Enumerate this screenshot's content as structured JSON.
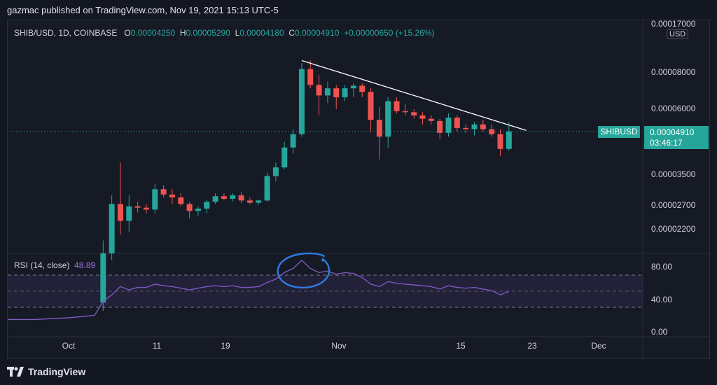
{
  "caption": "gazmac published on TradingView.com, Nov 19, 2021 15:13 UTC-5",
  "brand": "TradingView",
  "legend": {
    "symbol": "SHIB/USD, 1D, COINBASE",
    "open_label": "O",
    "open": "0.00004250",
    "high_label": "H",
    "high": "0.00005290",
    "low_label": "L",
    "low": "0.00004180",
    "close_label": "C",
    "close": "0.00004910",
    "change": "+0.00000650 (+15.26%)"
  },
  "rsi_legend": {
    "label": "RSI (14, close)",
    "value": "48.89"
  },
  "currency": "USD",
  "symbol_tag": "SHIBUSD",
  "price_tag": {
    "price": "0.00004910",
    "countdown": "03:46:17"
  },
  "price_ticks": [
    "0.00017000",
    "0.00008000",
    "0.00006000",
    "0.00004910",
    "0.00003500",
    "0.00002700",
    "0.00002200"
  ],
  "rsi_ticks": [
    "80.00",
    "40.00",
    "0.00"
  ],
  "date_ticks": [
    "Oct",
    "11",
    "19",
    "Nov",
    "15",
    "23",
    "Dec"
  ],
  "colors": {
    "up": "#26a69a",
    "down": "#ef5350",
    "rsi": "#7e57c2",
    "circle": "#2e7be0",
    "trend": "#ffffff"
  },
  "chart_data": [
    {
      "type": "candlestick",
      "title": "SHIB/USD, 1D, COINBASE",
      "x_unit": "date (2021)",
      "y_scale": "log",
      "candles": [
        {
          "date": "2021-10-05",
          "o": 1.2e-05,
          "h": 2e-05,
          "l": 1.12e-05,
          "c": 1.8e-05
        },
        {
          "date": "2021-10-06",
          "o": 1.8e-05,
          "h": 2.9e-05,
          "l": 1.7e-05,
          "c": 2.7e-05
        },
        {
          "date": "2021-10-07",
          "o": 2.7e-05,
          "h": 3.8e-05,
          "l": 2.1e-05,
          "c": 2.35e-05
        },
        {
          "date": "2021-10-08",
          "o": 2.35e-05,
          "h": 2.9e-05,
          "l": 2.15e-05,
          "c": 2.65e-05
        },
        {
          "date": "2021-10-09",
          "o": 2.65e-05,
          "h": 2.75e-05,
          "l": 2.52e-05,
          "c": 2.62e-05
        },
        {
          "date": "2021-10-10",
          "o": 2.62e-05,
          "h": 2.7e-05,
          "l": 2.5e-05,
          "c": 2.58e-05
        },
        {
          "date": "2021-10-11",
          "o": 2.58e-05,
          "h": 3.18e-05,
          "l": 2.5e-05,
          "c": 3.05e-05
        },
        {
          "date": "2021-10-12",
          "o": 3.05e-05,
          "h": 3.15e-05,
          "l": 2.85e-05,
          "c": 2.92e-05
        },
        {
          "date": "2021-10-13",
          "o": 2.92e-05,
          "h": 3.05e-05,
          "l": 2.7e-05,
          "c": 2.85e-05
        },
        {
          "date": "2021-10-14",
          "o": 2.85e-05,
          "h": 2.95e-05,
          "l": 2.65e-05,
          "c": 2.7e-05
        },
        {
          "date": "2021-10-15",
          "o": 2.7e-05,
          "h": 2.75e-05,
          "l": 2.4e-05,
          "c": 2.55e-05
        },
        {
          "date": "2021-10-16",
          "o": 2.55e-05,
          "h": 2.65e-05,
          "l": 2.45e-05,
          "c": 2.6e-05
        },
        {
          "date": "2021-10-17",
          "o": 2.6e-05,
          "h": 2.8e-05,
          "l": 2.5e-05,
          "c": 2.75e-05
        },
        {
          "date": "2021-10-18",
          "o": 2.75e-05,
          "h": 2.95e-05,
          "l": 2.7e-05,
          "c": 2.88e-05
        },
        {
          "date": "2021-10-19",
          "o": 2.88e-05,
          "h": 2.95e-05,
          "l": 2.78e-05,
          "c": 2.82e-05
        },
        {
          "date": "2021-10-20",
          "o": 2.82e-05,
          "h": 2.95e-05,
          "l": 2.76e-05,
          "c": 2.9e-05
        },
        {
          "date": "2021-10-21",
          "o": 2.9e-05,
          "h": 2.98e-05,
          "l": 2.72e-05,
          "c": 2.78e-05
        },
        {
          "date": "2021-10-22",
          "o": 2.78e-05,
          "h": 2.85e-05,
          "l": 2.7e-05,
          "c": 2.73e-05
        },
        {
          "date": "2021-10-23",
          "o": 2.73e-05,
          "h": 2.8e-05,
          "l": 2.68e-05,
          "c": 2.78e-05
        },
        {
          "date": "2021-10-24",
          "o": 2.78e-05,
          "h": 3.5e-05,
          "l": 2.75e-05,
          "c": 3.4e-05
        },
        {
          "date": "2021-10-25",
          "o": 3.4e-05,
          "h": 3.8e-05,
          "l": 3.25e-05,
          "c": 3.65e-05
        },
        {
          "date": "2021-10-26",
          "o": 3.65e-05,
          "h": 4.5e-05,
          "l": 3.6e-05,
          "c": 4.3e-05
        },
        {
          "date": "2021-10-27",
          "o": 4.3e-05,
          "h": 5e-05,
          "l": 4.1e-05,
          "c": 4.8e-05
        },
        {
          "date": "2021-10-28",
          "o": 4.8e-05,
          "h": 8.6e-05,
          "l": 4.7e-05,
          "c": 8.2e-05
        },
        {
          "date": "2021-10-29",
          "o": 8.2e-05,
          "h": 8.8e-05,
          "l": 7e-05,
          "c": 7.2e-05
        },
        {
          "date": "2021-10-30",
          "o": 7.2e-05,
          "h": 7.8e-05,
          "l": 5.6e-05,
          "c": 6.6e-05
        },
        {
          "date": "2021-10-31",
          "o": 6.6e-05,
          "h": 7.4e-05,
          "l": 6.2e-05,
          "c": 7e-05
        },
        {
          "date": "2021-11-01",
          "o": 7e-05,
          "h": 7.2e-05,
          "l": 5.9e-05,
          "c": 6.5e-05
        },
        {
          "date": "2021-11-02",
          "o": 6.5e-05,
          "h": 7.2e-05,
          "l": 6.3e-05,
          "c": 7e-05
        },
        {
          "date": "2021-11-03",
          "o": 7e-05,
          "h": 7.3e-05,
          "l": 6.5e-05,
          "c": 7.15e-05
        },
        {
          "date": "2021-11-04",
          "o": 7.15e-05,
          "h": 7.3e-05,
          "l": 6.5e-05,
          "c": 6.8e-05
        },
        {
          "date": "2021-11-05",
          "o": 6.8e-05,
          "h": 7e-05,
          "l": 4.9e-05,
          "c": 5.4e-05
        },
        {
          "date": "2021-11-06",
          "o": 5.4e-05,
          "h": 6e-05,
          "l": 3.9e-05,
          "c": 4.7e-05
        },
        {
          "date": "2021-11-07",
          "o": 4.7e-05,
          "h": 6.5e-05,
          "l": 4.3e-05,
          "c": 6.3e-05
        },
        {
          "date": "2021-11-08",
          "o": 6.3e-05,
          "h": 6.5e-05,
          "l": 5.7e-05,
          "c": 5.8e-05
        },
        {
          "date": "2021-11-09",
          "o": 5.8e-05,
          "h": 6.15e-05,
          "l": 5.6e-05,
          "c": 5.75e-05
        },
        {
          "date": "2021-11-10",
          "o": 5.75e-05,
          "h": 5.9e-05,
          "l": 5.45e-05,
          "c": 5.6e-05
        },
        {
          "date": "2021-11-11",
          "o": 5.6e-05,
          "h": 5.75e-05,
          "l": 5.2e-05,
          "c": 5.45e-05
        },
        {
          "date": "2021-11-12",
          "o": 5.45e-05,
          "h": 5.6e-05,
          "l": 5.2e-05,
          "c": 5.35e-05
        },
        {
          "date": "2021-11-13",
          "o": 5.35e-05,
          "h": 5.45e-05,
          "l": 4.6e-05,
          "c": 4.85e-05
        },
        {
          "date": "2021-11-14",
          "o": 4.85e-05,
          "h": 5.7e-05,
          "l": 4.7e-05,
          "c": 5.5e-05
        },
        {
          "date": "2021-11-15",
          "o": 5.5e-05,
          "h": 5.6e-05,
          "l": 4.9e-05,
          "c": 5.05e-05
        },
        {
          "date": "2021-11-16",
          "o": 5.05e-05,
          "h": 5.2e-05,
          "l": 4.85e-05,
          "c": 5e-05
        },
        {
          "date": "2021-11-17",
          "o": 5e-05,
          "h": 5.3e-05,
          "l": 4.75e-05,
          "c": 5.2e-05
        },
        {
          "date": "2021-11-18",
          "o": 5.2e-05,
          "h": 5.4e-05,
          "l": 4.9e-05,
          "c": 5e-05
        },
        {
          "date": "2021-11-19",
          "o": 5e-05,
          "h": 5.2e-05,
          "l": 4.7e-05,
          "c": 4.8e-05
        },
        {
          "date": "2021-11-20",
          "o": 4.8e-05,
          "h": 5e-05,
          "l": 4e-05,
          "c": 4.25e-05
        },
        {
          "date": "2021-11-21",
          "o": 4.25e-05,
          "h": 5.29e-05,
          "l": 4.18e-05,
          "c": 4.91e-05
        }
      ],
      "trendline": [
        {
          "date": "2021-10-28",
          "price": 8.8e-05
        },
        {
          "date": "2021-11-23",
          "price": 4.95e-05
        }
      ]
    },
    {
      "type": "line",
      "title": "RSI (14, close)",
      "ylim": [
        0,
        100
      ],
      "bands": [
        30,
        50,
        70
      ],
      "values": [
        {
          "date": "2021-09-20",
          "v": 15
        },
        {
          "date": "2021-09-27",
          "v": 15
        },
        {
          "date": "2021-10-01",
          "v": 17
        },
        {
          "date": "2021-10-04",
          "v": 20
        },
        {
          "date": "2021-10-05",
          "v": 37
        },
        {
          "date": "2021-10-06",
          "v": 45
        },
        {
          "date": "2021-10-07",
          "v": 55
        },
        {
          "date": "2021-10-08",
          "v": 51
        },
        {
          "date": "2021-10-09",
          "v": 54
        },
        {
          "date": "2021-10-10",
          "v": 54
        },
        {
          "date": "2021-10-11",
          "v": 58
        },
        {
          "date": "2021-10-12",
          "v": 56
        },
        {
          "date": "2021-10-13",
          "v": 55
        },
        {
          "date": "2021-10-14",
          "v": 53
        },
        {
          "date": "2021-10-15",
          "v": 51
        },
        {
          "date": "2021-10-16",
          "v": 53
        },
        {
          "date": "2021-10-17",
          "v": 55
        },
        {
          "date": "2021-10-18",
          "v": 56
        },
        {
          "date": "2021-10-19",
          "v": 55
        },
        {
          "date": "2021-10-20",
          "v": 56
        },
        {
          "date": "2021-10-21",
          "v": 54
        },
        {
          "date": "2021-10-22",
          "v": 54
        },
        {
          "date": "2021-10-23",
          "v": 55
        },
        {
          "date": "2021-10-24",
          "v": 60
        },
        {
          "date": "2021-10-25",
          "v": 64
        },
        {
          "date": "2021-10-26",
          "v": 72
        },
        {
          "date": "2021-10-27",
          "v": 77
        },
        {
          "date": "2021-10-28",
          "v": 87
        },
        {
          "date": "2021-10-29",
          "v": 77
        },
        {
          "date": "2021-10-30",
          "v": 72
        },
        {
          "date": "2021-10-31",
          "v": 74
        },
        {
          "date": "2021-11-01",
          "v": 70
        },
        {
          "date": "2021-11-02",
          "v": 72
        },
        {
          "date": "2021-11-03",
          "v": 71
        },
        {
          "date": "2021-11-04",
          "v": 66
        },
        {
          "date": "2021-11-05",
          "v": 58
        },
        {
          "date": "2021-11-06",
          "v": 55
        },
        {
          "date": "2021-11-07",
          "v": 61
        },
        {
          "date": "2021-11-08",
          "v": 59
        },
        {
          "date": "2021-11-09",
          "v": 58
        },
        {
          "date": "2021-11-10",
          "v": 57
        },
        {
          "date": "2021-11-11",
          "v": 56
        },
        {
          "date": "2021-11-12",
          "v": 55
        },
        {
          "date": "2021-11-13",
          "v": 52
        },
        {
          "date": "2021-11-14",
          "v": 56
        },
        {
          "date": "2021-11-15",
          "v": 54
        },
        {
          "date": "2021-11-16",
          "v": 53
        },
        {
          "date": "2021-11-17",
          "v": 54
        },
        {
          "date": "2021-11-18",
          "v": 52
        },
        {
          "date": "2021-11-19",
          "v": 50
        },
        {
          "date": "2021-11-20",
          "v": 45
        },
        {
          "date": "2021-11-21",
          "v": 49
        }
      ]
    }
  ]
}
